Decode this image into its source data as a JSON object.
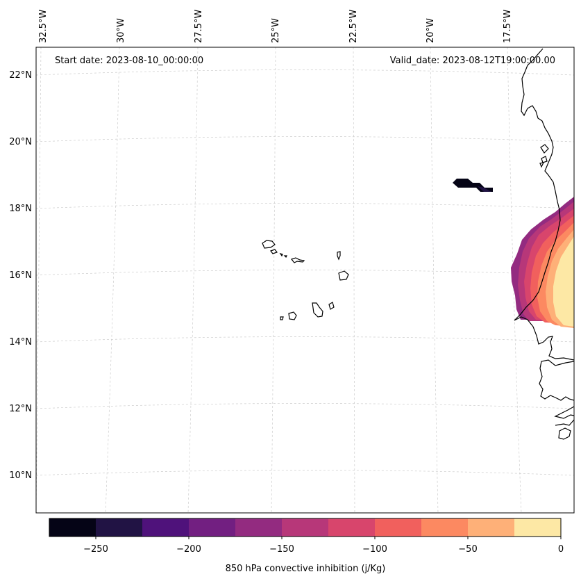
{
  "map": {
    "start_label": "Start date: 2023-08-10_00:00:00",
    "valid_label": "Valid_date: 2023-08-12T19:00:00.00",
    "lon_labels": [
      "32.5°W",
      "30°W",
      "27.5°W",
      "25°W",
      "22.5°W",
      "20°W",
      "17.5°W"
    ],
    "lat_labels": [
      "22°N",
      "20°N",
      "18°N",
      "16°N",
      "14°N",
      "12°N",
      "10°N"
    ],
    "land_outline_color": "#000000",
    "gridline_color": "#cccccc"
  },
  "colorbar": {
    "title": "850 hPa convective inhibition (j/Kg)",
    "tick_labels": [
      "−250",
      "−200",
      "−150",
      "−100",
      "−50",
      "0"
    ],
    "levels": [
      -275,
      -250,
      -225,
      -200,
      -175,
      -150,
      -125,
      -100,
      -75,
      -50,
      -25,
      0
    ],
    "colors": [
      "#050416",
      "#211344",
      "#4f127b",
      "#721f81",
      "#932b80",
      "#b73779",
      "#d8456c",
      "#f1605d",
      "#fc8961",
      "#feb078",
      "#fde8a5"
    ]
  }
}
